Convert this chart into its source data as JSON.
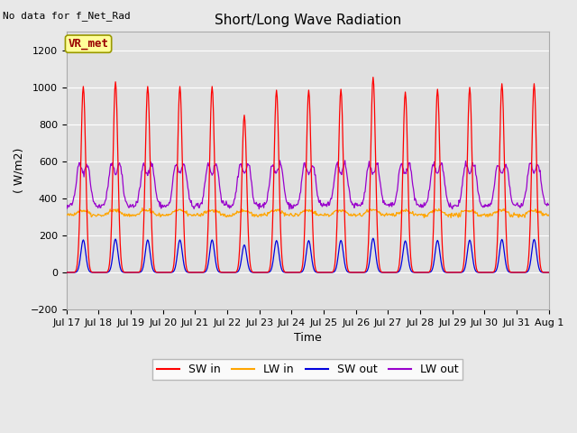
{
  "title": "Short/Long Wave Radiation",
  "xlabel": "Time",
  "ylabel": "( W/m2)",
  "ylim": [
    -200,
    1300
  ],
  "yticks": [
    -200,
    0,
    200,
    400,
    600,
    800,
    1000,
    1200
  ],
  "annotation_text": "No data for f_Net_Rad",
  "legend_label": "VR_met",
  "n_days": 15,
  "colors": {
    "SW_in": "#ff0000",
    "LW_in": "#ffa500",
    "SW_out": "#0000dd",
    "LW_out": "#9900cc"
  },
  "fig_bg_color": "#e8e8e8",
  "plot_bg_color": "#e0e0e0",
  "grid_color": "#ffffff",
  "figsize": [
    6.4,
    4.8
  ],
  "dpi": 100
}
